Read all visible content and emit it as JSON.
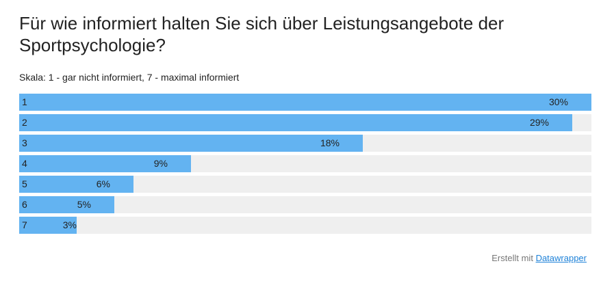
{
  "chart_data": {
    "type": "bar",
    "orientation": "horizontal",
    "title": "Für wie informiert halten Sie sich über Leistungsangebote der Sportpsychologie?",
    "subtitle": "Skala: 1 - gar nicht informiert, 7 - maximal informiert",
    "categories": [
      "1",
      "2",
      "3",
      "4",
      "5",
      "6",
      "7"
    ],
    "values": [
      30,
      29,
      18,
      9,
      6,
      5,
      3
    ],
    "value_labels": [
      "30%",
      "29%",
      "18%",
      "9%",
      "6%",
      "5%",
      "3%"
    ],
    "xlim": [
      0,
      30
    ],
    "grid": false,
    "legend": "none",
    "colors": {
      "bar": "#63b3f1",
      "track": "#efefef"
    }
  },
  "footer": {
    "prefix": "Erstellt mit",
    "link_label": "Datawrapper"
  }
}
